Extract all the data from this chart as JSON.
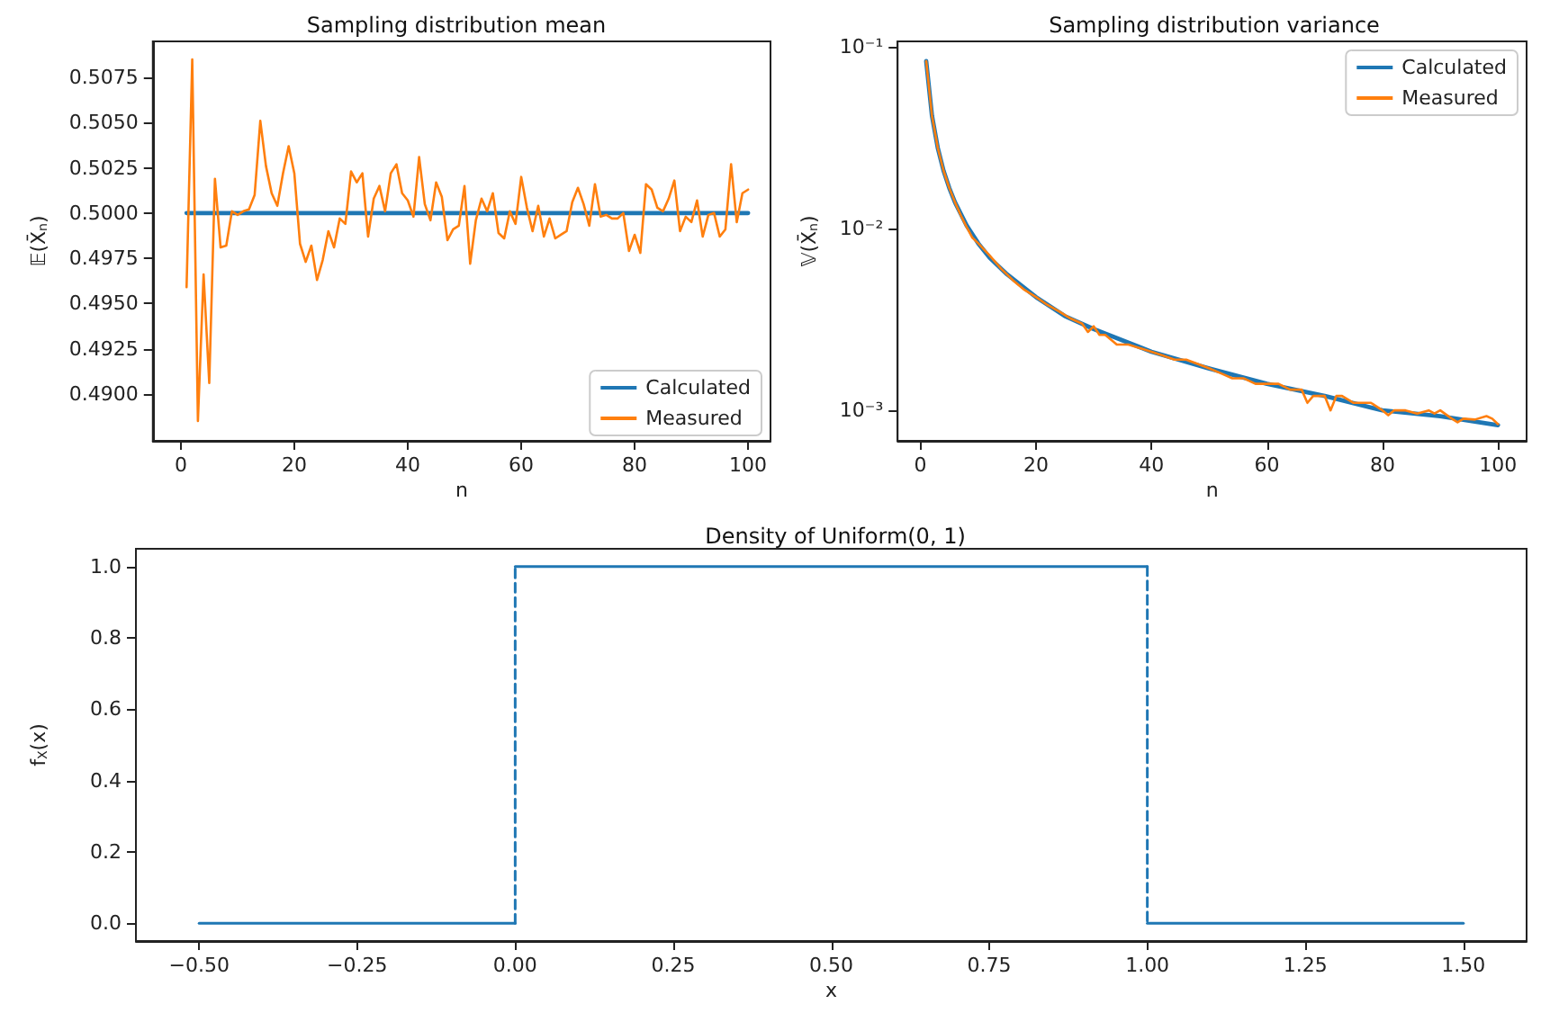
{
  "chart_data": [
    {
      "type": "line",
      "title": "Sampling distribution mean",
      "xlabel": "n",
      "ylabel": "𝔼(X̄$_{n}$)",
      "legend": "bottom right",
      "xlim": [
        -4.95,
        103.95
      ],
      "xticks": [
        0,
        20,
        40,
        60,
        80,
        100
      ],
      "ylim": [
        0.4874,
        0.5095
      ],
      "yticks": [
        {
          "value": 0.49,
          "label": "0.4900"
        },
        {
          "value": 0.4925,
          "label": "0.4925"
        },
        {
          "value": 0.495,
          "label": "0.4950"
        },
        {
          "value": 0.4975,
          "label": "0.4975"
        },
        {
          "value": 0.5,
          "label": "0.5000"
        },
        {
          "value": 0.5025,
          "label": "0.5025"
        },
        {
          "value": 0.505,
          "label": "0.5050"
        },
        {
          "value": 0.5075,
          "label": "0.5075"
        }
      ],
      "series": [
        {
          "name": "Calculated",
          "color": "#1f77b4",
          "x": [
            1,
            100
          ],
          "values": [
            0.5,
            0.5
          ]
        },
        {
          "name": "Measured",
          "color": "#ff7f0e",
          "x": [
            1,
            2,
            3,
            4,
            5,
            6,
            7,
            8,
            9,
            10,
            11,
            12,
            13,
            14,
            15,
            16,
            17,
            18,
            19,
            20,
            21,
            22,
            23,
            24,
            25,
            26,
            27,
            28,
            29,
            30,
            31,
            32,
            33,
            34,
            35,
            36,
            37,
            38,
            39,
            40,
            41,
            42,
            43,
            44,
            45,
            46,
            47,
            48,
            49,
            50,
            51,
            52,
            53,
            54,
            55,
            56,
            57,
            58,
            59,
            60,
            61,
            62,
            63,
            64,
            65,
            66,
            67,
            68,
            69,
            70,
            71,
            72,
            73,
            74,
            75,
            76,
            77,
            78,
            79,
            80,
            81,
            82,
            83,
            84,
            85,
            86,
            87,
            88,
            89,
            90,
            91,
            92,
            93,
            94,
            95,
            96,
            97,
            98,
            99,
            100
          ],
          "values": [
            0.4959,
            0.5085,
            0.4885,
            0.4966,
            0.4906,
            0.5019,
            0.4981,
            0.4982,
            0.5001,
            0.4999,
            0.5001,
            0.5002,
            0.501,
            0.5051,
            0.5026,
            0.5011,
            0.5004,
            0.5022,
            0.5037,
            0.5022,
            0.4983,
            0.4973,
            0.4982,
            0.4963,
            0.4974,
            0.499,
            0.4981,
            0.4997,
            0.4994,
            0.5023,
            0.5017,
            0.5022,
            0.4987,
            0.5008,
            0.5015,
            0.5001,
            0.5022,
            0.5027,
            0.5011,
            0.5007,
            0.4998,
            0.5031,
            0.5005,
            0.4996,
            0.5017,
            0.5009,
            0.4985,
            0.4991,
            0.4993,
            0.5015,
            0.4972,
            0.4996,
            0.5008,
            0.5001,
            0.5011,
            0.4989,
            0.4986,
            0.5001,
            0.4994,
            0.502,
            0.5003,
            0.499,
            0.5004,
            0.4987,
            0.4997,
            0.4986,
            0.4988,
            0.499,
            0.5006,
            0.5014,
            0.5005,
            0.4993,
            0.5016,
            0.4998,
            0.4999,
            0.4997,
            0.4997,
            0.5,
            0.4979,
            0.4988,
            0.4978,
            0.5016,
            0.5013,
            0.5003,
            0.5001,
            0.5008,
            0.5018,
            0.499,
            0.4998,
            0.4995,
            0.5007,
            0.4987,
            0.4999,
            0.5,
            0.4987,
            0.4991,
            0.5027,
            0.4995,
            0.5011,
            0.5013
          ]
        }
      ]
    },
    {
      "type": "line",
      "title": "Sampling distribution variance",
      "xlabel": "n",
      "ylabel": "𝕍(X̄$_{n}$)",
      "legend": "top right",
      "log": "y",
      "xlim": [
        -3.95,
        104.95
      ],
      "xticks": [
        0,
        20,
        40,
        60,
        80,
        100
      ],
      "ylim": [
        0.00068,
        0.107
      ],
      "yticks": [
        {
          "value": 0.001,
          "label": "10⁻³"
        },
        {
          "value": 0.01,
          "label": "10⁻²"
        },
        {
          "value": 0.1,
          "label": "10⁻¹"
        }
      ],
      "series": [
        {
          "name": "Calculated",
          "color": "#1f77b4",
          "x": [
            1,
            2,
            3,
            4,
            5,
            6,
            8,
            10,
            12,
            15,
            20,
            25,
            30,
            40,
            50,
            60,
            70,
            80,
            90,
            100
          ],
          "values": [
            0.0833,
            0.0417,
            0.0278,
            0.0208,
            0.0167,
            0.0139,
            0.0104,
            0.0083,
            0.0069,
            0.0056,
            0.0042,
            0.0033,
            0.0028,
            0.0021,
            0.0017,
            0.0014,
            0.0012,
            0.001,
            0.00093,
            0.00083
          ]
        },
        {
          "name": "Measured",
          "color": "#ff7f0e",
          "x": [
            1,
            2,
            3,
            4,
            5,
            6,
            7,
            8,
            9,
            10,
            12,
            14,
            16,
            18,
            20,
            22,
            24,
            26,
            28,
            29,
            30,
            31,
            32,
            34,
            36,
            38,
            40,
            42,
            44,
            46,
            48,
            50,
            52,
            54,
            56,
            58,
            60,
            62,
            64,
            66,
            67,
            68,
            70,
            71,
            72,
            73,
            75,
            78,
            80,
            81,
            82,
            84,
            86,
            88,
            89,
            90,
            92,
            93,
            94,
            96,
            98,
            99,
            100
          ],
          "values": [
            0.0833,
            0.0417,
            0.0278,
            0.0208,
            0.0167,
            0.0139,
            0.0118,
            0.0102,
            0.0089,
            0.0083,
            0.0071,
            0.006,
            0.0052,
            0.0046,
            0.0042,
            0.0038,
            0.0035,
            0.0032,
            0.003,
            0.0027,
            0.0029,
            0.0026,
            0.0026,
            0.0023,
            0.0023,
            0.0022,
            0.0021,
            0.002,
            0.0019,
            0.0019,
            0.0018,
            0.0017,
            0.0016,
            0.0015,
            0.0015,
            0.0014,
            0.0014,
            0.0014,
            0.0013,
            0.0013,
            0.0011,
            0.0012,
            0.0012,
            0.001,
            0.0012,
            0.0012,
            0.0011,
            0.0011,
            0.001,
            0.00094,
            0.001,
            0.001,
            0.00096,
            0.001,
            0.00096,
            0.001,
            0.0009,
            0.00086,
            0.0009,
            0.00089,
            0.00093,
            0.0009,
            0.00084
          ]
        }
      ]
    },
    {
      "type": "line",
      "title": "Density of Uniform(0, 1)",
      "xlabel": "x",
      "ylabel": "f$_{X}$(x)",
      "xlim": [
        -0.6,
        1.6
      ],
      "xticks": [
        {
          "value": -0.5,
          "label": "−0.50"
        },
        {
          "value": -0.25,
          "label": "−0.25"
        },
        {
          "value": 0,
          "label": "0.00"
        },
        {
          "value": 0.25,
          "label": "0.25"
        },
        {
          "value": 0.5,
          "label": "0.50"
        },
        {
          "value": 0.75,
          "label": "0.75"
        },
        {
          "value": 1,
          "label": "1.00"
        },
        {
          "value": 1.25,
          "label": "1.25"
        },
        {
          "value": 1.5,
          "label": "1.50"
        }
      ],
      "ylim": [
        -0.05,
        1.05
      ],
      "yticks": [
        {
          "value": 0,
          "label": "0.0"
        },
        {
          "value": 0.2,
          "label": "0.2"
        },
        {
          "value": 0.4,
          "label": "0.4"
        },
        {
          "value": 0.6,
          "label": "0.6"
        },
        {
          "value": 0.8,
          "label": "0.8"
        },
        {
          "value": 1,
          "label": "1.0"
        }
      ],
      "series": [
        {
          "color": "#1f77b4",
          "x": [
            -0.5,
            0
          ],
          "values": [
            0,
            0
          ]
        },
        {
          "color": "#1f77b4",
          "x": [
            0,
            0
          ],
          "values": [
            0,
            1
          ],
          "line_style": "dashed"
        },
        {
          "color": "#1f77b4",
          "x": [
            0,
            1
          ],
          "values": [
            1,
            1
          ]
        },
        {
          "color": "#1f77b4",
          "x": [
            1,
            1
          ],
          "values": [
            1,
            0
          ],
          "line_style": "dashed"
        },
        {
          "color": "#1f77b4",
          "x": [
            1,
            1.5
          ],
          "values": [
            0,
            0
          ]
        }
      ]
    }
  ]
}
